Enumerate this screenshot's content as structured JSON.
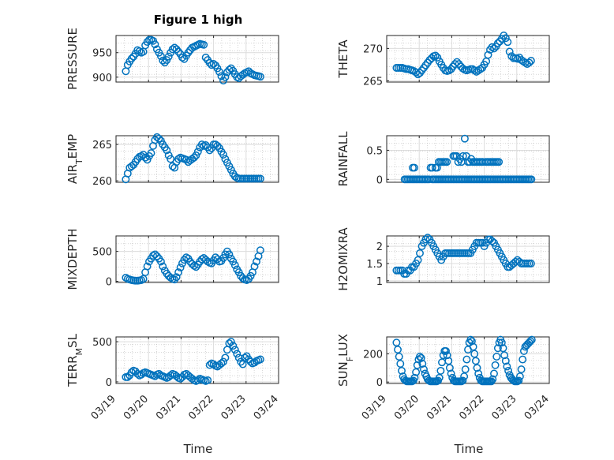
{
  "figure_title": "Figure 1 high",
  "x_axis_label": "Time",
  "x_tick_labels": [
    "03/19",
    "03/20",
    "03/21",
    "03/22",
    "03/23",
    "03/24"
  ],
  "colors": {
    "marker": "#0072BD",
    "axis": "#262626"
  },
  "chart_data": [
    {
      "type": "scatter",
      "ylabel_main": "PRESSURE",
      "ylabel_sub": "",
      "ylim": [
        890,
        985
      ],
      "yticks": [
        900,
        950
      ],
      "xlim": [
        0,
        5
      ],
      "x": [
        0.3,
        0.36,
        0.42,
        0.48,
        0.54,
        0.6,
        0.66,
        0.72,
        0.78,
        0.84,
        0.9,
        0.96,
        1.02,
        1.08,
        1.14,
        1.2,
        1.26,
        1.32,
        1.38,
        1.44,
        1.5,
        1.56,
        1.62,
        1.68,
        1.74,
        1.8,
        1.86,
        1.92,
        1.98,
        2.04,
        2.1,
        2.16,
        2.22,
        2.28,
        2.34,
        2.4,
        2.46,
        2.52,
        2.58,
        2.64,
        2.7,
        2.76,
        2.82,
        2.88,
        2.94,
        3.0,
        3.06,
        3.12,
        3.18,
        3.24,
        3.3,
        3.36,
        3.42,
        3.48,
        3.54,
        3.6,
        3.66,
        3.72,
        3.78,
        3.84,
        3.9,
        3.96,
        4.02,
        4.08,
        4.14,
        4.2,
        4.26,
        4.32,
        4.38,
        4.44
      ],
      "y": [
        912,
        925,
        932,
        938,
        942,
        948,
        955,
        953,
        950,
        952,
        965,
        972,
        976,
        976,
        974,
        967,
        957,
        950,
        943,
        934,
        930,
        935,
        942,
        950,
        957,
        960,
        957,
        952,
        947,
        940,
        937,
        944,
        950,
        955,
        960,
        962,
        964,
        966,
        968,
        967,
        966,
        940,
        935,
        929,
        925,
        927,
        924,
        918,
        911,
        902,
        893,
        900,
        910,
        915,
        918,
        913,
        906,
        900,
        898,
        902,
        905,
        908,
        910,
        912,
        908,
        906,
        904,
        903,
        902,
        901
      ]
    },
    {
      "type": "scatter",
      "ylabel_main": "THETA",
      "ylabel_sub": "",
      "ylim": [
        264.8,
        272
      ],
      "yticks": [
        265,
        270
      ],
      "xlim": [
        0,
        5
      ],
      "x": [
        0.3,
        0.36,
        0.42,
        0.48,
        0.54,
        0.6,
        0.66,
        0.72,
        0.78,
        0.84,
        0.9,
        0.96,
        1.02,
        1.08,
        1.14,
        1.2,
        1.26,
        1.32,
        1.38,
        1.44,
        1.5,
        1.56,
        1.62,
        1.68,
        1.74,
        1.8,
        1.86,
        1.92,
        1.98,
        2.04,
        2.1,
        2.16,
        2.22,
        2.28,
        2.34,
        2.4,
        2.46,
        2.52,
        2.58,
        2.64,
        2.7,
        2.76,
        2.82,
        2.88,
        2.94,
        3.0,
        3.06,
        3.12,
        3.18,
        3.24,
        3.3,
        3.36,
        3.42,
        3.48,
        3.54,
        3.6,
        3.66,
        3.72,
        3.78,
        3.84,
        3.9,
        3.96,
        4.02,
        4.08,
        4.14,
        4.2,
        4.26,
        4.32,
        4.38,
        4.44
      ],
      "y": [
        267.0,
        267.0,
        267.0,
        267.0,
        266.9,
        266.8,
        266.8,
        266.7,
        266.6,
        266.5,
        266.3,
        266.0,
        266.2,
        266.6,
        267.0,
        267.4,
        267.8,
        268.2,
        268.5,
        268.8,
        268.9,
        268.6,
        268.0,
        267.5,
        267.0,
        266.6,
        266.5,
        266.6,
        266.8,
        267.2,
        267.6,
        267.9,
        267.6,
        267.2,
        266.9,
        266.7,
        266.6,
        266.7,
        266.8,
        266.8,
        266.6,
        266.4,
        266.6,
        266.8,
        267.0,
        267.5,
        268.0,
        269.0,
        269.8,
        270.2,
        270.0,
        270.3,
        270.8,
        271.1,
        271.5,
        272.0,
        271.6,
        271.0,
        269.5,
        268.8,
        268.5,
        268.5,
        268.4,
        268.6,
        268.2,
        268.0,
        267.8,
        267.6,
        267.8,
        268.1
      ]
    },
    {
      "type": "scatter",
      "ylabel_main": "AIR",
      "ylabel_sub": "T",
      "ylabel_tail": "EMP",
      "ylim": [
        259.8,
        266.2
      ],
      "yticks": [
        260,
        265
      ],
      "xlim": [
        0,
        5
      ],
      "x": [
        0.3,
        0.36,
        0.42,
        0.48,
        0.54,
        0.6,
        0.66,
        0.72,
        0.78,
        0.84,
        0.9,
        0.96,
        1.02,
        1.08,
        1.14,
        1.2,
        1.26,
        1.32,
        1.38,
        1.44,
        1.5,
        1.56,
        1.62,
        1.68,
        1.74,
        1.8,
        1.86,
        1.92,
        1.98,
        2.04,
        2.1,
        2.16,
        2.22,
        2.28,
        2.34,
        2.4,
        2.46,
        2.52,
        2.58,
        2.64,
        2.7,
        2.76,
        2.82,
        2.88,
        2.94,
        3.0,
        3.06,
        3.12,
        3.18,
        3.24,
        3.3,
        3.36,
        3.42,
        3.48,
        3.54,
        3.6,
        3.66,
        3.72,
        3.78,
        3.84,
        3.9,
        3.96,
        4.02,
        4.08,
        4.14,
        4.2,
        4.26,
        4.32,
        4.38,
        4.44
      ],
      "y": [
        260.2,
        261.0,
        261.8,
        262.0,
        262.2,
        262.6,
        263.0,
        263.3,
        263.4,
        263.6,
        263.2,
        262.9,
        263.4,
        263.8,
        264.8,
        265.6,
        266.0,
        265.8,
        265.5,
        265.0,
        264.6,
        264.2,
        263.5,
        263.0,
        262.0,
        261.8,
        262.6,
        263.0,
        263.2,
        263.1,
        263.0,
        262.9,
        262.6,
        262.8,
        263.0,
        263.2,
        263.5,
        264.0,
        264.6,
        265.0,
        264.8,
        264.9,
        264.6,
        264.2,
        264.5,
        265.0,
        265.0,
        264.8,
        264.5,
        264.0,
        263.6,
        263.0,
        262.5,
        262.0,
        261.5,
        261.0,
        260.6,
        260.4,
        260.3,
        260.3,
        260.3,
        260.3,
        260.3,
        260.3,
        260.3,
        260.3,
        260.3,
        260.3,
        260.3,
        260.3
      ]
    },
    {
      "type": "scatter",
      "ylabel_main": "RAINFALL",
      "ylabel_sub": "",
      "ylim": [
        -0.05,
        0.75
      ],
      "yticks": [
        0,
        0.5
      ],
      "xlim": [
        0,
        5
      ],
      "x": [
        0.55,
        0.6,
        0.65,
        0.7,
        0.75,
        0.8,
        0.85,
        0.9,
        0.95,
        1.0,
        1.05,
        1.1,
        1.15,
        1.2,
        1.25,
        1.3,
        1.4,
        1.45,
        1.5,
        1.55,
        1.6,
        1.65,
        1.7,
        1.75,
        1.8,
        1.85,
        1.9,
        1.95,
        2.0,
        2.05,
        2.1,
        2.15,
        2.2,
        2.25,
        2.3,
        2.35,
        2.4,
        2.45,
        2.5,
        2.55,
        2.6,
        2.65,
        2.7,
        2.75,
        2.8,
        2.85,
        2.9,
        2.95,
        3.0,
        3.05,
        3.1,
        3.15,
        3.2,
        3.25,
        3.3,
        3.35,
        3.4,
        3.45,
        3.5,
        3.55,
        3.6,
        3.65,
        3.7,
        3.75,
        3.8,
        3.85,
        3.9,
        3.95,
        4.0,
        4.05,
        4.1,
        4.15,
        4.2,
        4.25,
        4.3,
        4.35,
        4.4,
        4.45,
        0.8,
        0.85,
        1.35,
        1.4,
        1.5,
        1.55,
        1.6,
        1.65,
        1.7,
        1.75,
        1.8,
        1.85,
        2.05,
        2.1,
        2.15,
        2.2,
        2.25,
        2.3,
        2.35,
        2.4,
        2.45,
        2.5,
        2.55,
        2.6,
        2.65,
        2.7,
        2.75,
        2.8,
        2.85,
        2.9,
        2.95,
        3.05,
        3.1,
        3.15,
        3.2,
        3.25,
        3.3,
        3.35,
        3.4,
        3.45
      ],
      "y": [
        0,
        0,
        0,
        0,
        0,
        0,
        0,
        0,
        0,
        0,
        0,
        0,
        0,
        0,
        0,
        0,
        0,
        0,
        0,
        0,
        0,
        0,
        0,
        0,
        0,
        0,
        0,
        0,
        0,
        0,
        0,
        0,
        0,
        0,
        0,
        0,
        0,
        0,
        0,
        0,
        0,
        0,
        0,
        0,
        0,
        0,
        0,
        0,
        0,
        0,
        0,
        0,
        0,
        0,
        0,
        0,
        0,
        0,
        0,
        0,
        0,
        0,
        0,
        0,
        0,
        0,
        0,
        0,
        0,
        0,
        0,
        0,
        0,
        0,
        0,
        0,
        0,
        0,
        0.2,
        0.2,
        0.2,
        0.2,
        0.2,
        0.2,
        0.3,
        0.3,
        0.3,
        0.3,
        0.3,
        0.3,
        0.4,
        0.4,
        0.4,
        0.3,
        0.35,
        0.3,
        0.4,
        0.7,
        0.4,
        0.3,
        0.3,
        0.35,
        0.3,
        0.3,
        0.3,
        0.3,
        0.3,
        0.3,
        0.3,
        0.3,
        0.3,
        0.3,
        0.3,
        0.3,
        0.3,
        0.3,
        0.3,
        0.3
      ]
    },
    {
      "type": "scatter",
      "ylabel_main": "MIXDEPTH",
      "ylabel_sub": "",
      "ylim": [
        -20,
        760
      ],
      "yticks": [
        0,
        500
      ],
      "xlim": [
        0,
        5
      ],
      "x": [
        0.3,
        0.36,
        0.42,
        0.48,
        0.54,
        0.6,
        0.66,
        0.72,
        0.78,
        0.84,
        0.9,
        0.96,
        1.02,
        1.08,
        1.14,
        1.2,
        1.26,
        1.32,
        1.38,
        1.44,
        1.5,
        1.56,
        1.62,
        1.68,
        1.74,
        1.8,
        1.86,
        1.92,
        1.98,
        2.04,
        2.1,
        2.16,
        2.22,
        2.28,
        2.34,
        2.4,
        2.46,
        2.52,
        2.58,
        2.64,
        2.7,
        2.76,
        2.82,
        2.88,
        2.94,
        3.0,
        3.06,
        3.12,
        3.18,
        3.24,
        3.3,
        3.36,
        3.42,
        3.48,
        3.54,
        3.6,
        3.66,
        3.72,
        3.78,
        3.84,
        3.9,
        3.96,
        4.02,
        4.08,
        4.14,
        4.2,
        4.26,
        4.32,
        4.38,
        4.44
      ],
      "y": [
        60,
        40,
        30,
        20,
        15,
        10,
        10,
        15,
        20,
        40,
        150,
        250,
        330,
        380,
        430,
        450,
        420,
        380,
        330,
        250,
        180,
        130,
        90,
        60,
        40,
        30,
        70,
        150,
        230,
        300,
        360,
        400,
        380,
        330,
        290,
        260,
        240,
        280,
        330,
        370,
        390,
        360,
        330,
        310,
        300,
        350,
        400,
        370,
        330,
        340,
        390,
        450,
        500,
        450,
        380,
        330,
        270,
        200,
        150,
        90,
        50,
        30,
        20,
        40,
        90,
        150,
        250,
        330,
        420,
        520
      ]
    },
    {
      "type": "scatter",
      "ylabel_main": "H2OMIXRA",
      "ylabel_sub": "",
      "ylim": [
        0.95,
        2.3
      ],
      "yticks": [
        1,
        1.5,
        2
      ],
      "xlim": [
        0,
        5
      ],
      "x": [
        0.3,
        0.36,
        0.42,
        0.48,
        0.54,
        0.6,
        0.66,
        0.72,
        0.78,
        0.84,
        0.9,
        0.96,
        1.02,
        1.08,
        1.14,
        1.2,
        1.26,
        1.32,
        1.38,
        1.44,
        1.5,
        1.56,
        1.62,
        1.68,
        1.74,
        1.8,
        1.86,
        1.92,
        1.98,
        2.04,
        2.1,
        2.16,
        2.22,
        2.28,
        2.34,
        2.4,
        2.46,
        2.52,
        2.58,
        2.64,
        2.7,
        2.76,
        2.82,
        2.88,
        2.94,
        3.0,
        3.06,
        3.12,
        3.18,
        3.24,
        3.3,
        3.36,
        3.42,
        3.48,
        3.54,
        3.6,
        3.66,
        3.72,
        3.78,
        3.84,
        3.9,
        3.96,
        4.02,
        4.08,
        4.14,
        4.2,
        4.26,
        4.32,
        4.38,
        4.44
      ],
      "y": [
        1.3,
        1.3,
        1.3,
        1.3,
        1.2,
        1.2,
        1.3,
        1.3,
        1.4,
        1.4,
        1.5,
        1.6,
        1.8,
        2.0,
        2.1,
        2.2,
        2.25,
        2.2,
        2.1,
        2.0,
        1.9,
        1.8,
        1.7,
        1.6,
        1.7,
        1.8,
        1.8,
        1.8,
        1.8,
        1.8,
        1.8,
        1.8,
        1.8,
        1.8,
        1.8,
        1.8,
        1.8,
        1.8,
        1.8,
        1.9,
        2.0,
        2.1,
        2.1,
        2.1,
        2.1,
        2.0,
        2.1,
        2.2,
        2.2,
        2.15,
        2.1,
        2.0,
        1.9,
        1.8,
        1.7,
        1.6,
        1.5,
        1.4,
        1.4,
        1.45,
        1.5,
        1.55,
        1.6,
        1.55,
        1.5,
        1.5,
        1.5,
        1.5,
        1.5,
        1.5
      ]
    },
    {
      "type": "scatter",
      "ylabel_main": "TERR",
      "ylabel_sub": "M",
      "ylabel_tail": "SL",
      "ylim": [
        -20,
        560
      ],
      "yticks": [
        0,
        500
      ],
      "xlim": [
        0,
        5
      ],
      "x": [
        0.3,
        0.36,
        0.42,
        0.48,
        0.54,
        0.6,
        0.66,
        0.72,
        0.78,
        0.84,
        0.9,
        0.96,
        1.02,
        1.08,
        1.14,
        1.2,
        1.26,
        1.32,
        1.38,
        1.44,
        1.5,
        1.56,
        1.62,
        1.68,
        1.74,
        1.8,
        1.86,
        1.92,
        1.98,
        2.04,
        2.1,
        2.16,
        2.22,
        2.28,
        2.34,
        2.4,
        2.46,
        2.52,
        2.58,
        2.64,
        2.7,
        2.76,
        2.82,
        2.88,
        2.94,
        3.0,
        3.06,
        3.12,
        3.18,
        3.24,
        3.3,
        3.36,
        3.42,
        3.48,
        3.54,
        3.6,
        3.66,
        3.72,
        3.78,
        3.84,
        3.9,
        3.96,
        4.02,
        4.08,
        4.14,
        4.2,
        4.26,
        4.32,
        4.38,
        4.44
      ],
      "y": [
        60,
        60,
        80,
        120,
        140,
        130,
        100,
        80,
        90,
        110,
        120,
        110,
        100,
        90,
        80,
        70,
        90,
        100,
        80,
        70,
        60,
        50,
        60,
        80,
        100,
        90,
        70,
        50,
        40,
        60,
        90,
        100,
        80,
        60,
        40,
        20,
        10,
        20,
        40,
        30,
        20,
        10,
        20,
        210,
        230,
        220,
        200,
        190,
        210,
        230,
        250,
        300,
        400,
        480,
        500,
        450,
        400,
        350,
        300,
        250,
        220,
        300,
        320,
        280,
        250,
        230,
        240,
        260,
        270,
        280
      ]
    },
    {
      "type": "scatter",
      "ylabel_main": "SUN",
      "ylabel_sub": "F",
      "ylabel_tail": "LUX",
      "ylim": [
        -10,
        320
      ],
      "yticks": [
        0,
        200
      ],
      "xlim": [
        0,
        5
      ],
      "x": [
        0.3,
        0.34,
        0.38,
        0.42,
        0.46,
        0.5,
        0.54,
        0.58,
        0.62,
        0.66,
        0.7,
        0.74,
        0.78,
        0.82,
        0.86,
        0.9,
        0.94,
        0.98,
        1.02,
        1.06,
        1.1,
        1.14,
        1.18,
        1.22,
        1.26,
        1.3,
        1.34,
        1.38,
        1.42,
        1.46,
        1.5,
        1.54,
        1.58,
        1.62,
        1.66,
        1.7,
        1.74,
        1.78,
        1.82,
        1.86,
        1.9,
        1.94,
        1.98,
        2.02,
        2.06,
        2.1,
        2.14,
        2.18,
        2.22,
        2.26,
        2.3,
        2.34,
        2.38,
        2.42,
        2.46,
        2.5,
        2.54,
        2.58,
        2.62,
        2.66,
        2.7,
        2.74,
        2.78,
        2.82,
        2.86,
        2.9,
        2.94,
        2.98,
        3.02,
        3.06,
        3.1,
        3.14,
        3.18,
        3.22,
        3.26,
        3.3,
        3.34,
        3.38,
        3.42,
        3.46,
        3.5,
        3.54,
        3.58,
        3.62,
        3.66,
        3.7,
        3.74,
        3.78,
        3.82,
        3.86,
        3.9,
        3.94,
        3.98,
        4.02,
        4.06,
        4.1,
        4.14,
        4.18,
        4.22,
        4.26,
        4.3,
        4.34,
        4.38,
        4.42,
        4.46
      ],
      "y": [
        280,
        230,
        180,
        130,
        80,
        40,
        20,
        10,
        5,
        5,
        5,
        5,
        5,
        10,
        30,
        70,
        120,
        160,
        180,
        170,
        130,
        90,
        60,
        40,
        20,
        10,
        5,
        5,
        5,
        5,
        5,
        5,
        10,
        30,
        80,
        140,
        190,
        220,
        220,
        190,
        150,
        100,
        60,
        30,
        10,
        5,
        5,
        5,
        5,
        5,
        5,
        10,
        40,
        90,
        160,
        230,
        280,
        300,
        290,
        250,
        200,
        150,
        100,
        60,
        30,
        10,
        5,
        5,
        5,
        5,
        5,
        5,
        5,
        5,
        20,
        60,
        120,
        180,
        240,
        280,
        300,
        280,
        240,
        190,
        150,
        110,
        80,
        50,
        30,
        20,
        10,
        5,
        5,
        5,
        10,
        40,
        90,
        160,
        220,
        250,
        260,
        270,
        280,
        290,
        300
      ]
    }
  ]
}
